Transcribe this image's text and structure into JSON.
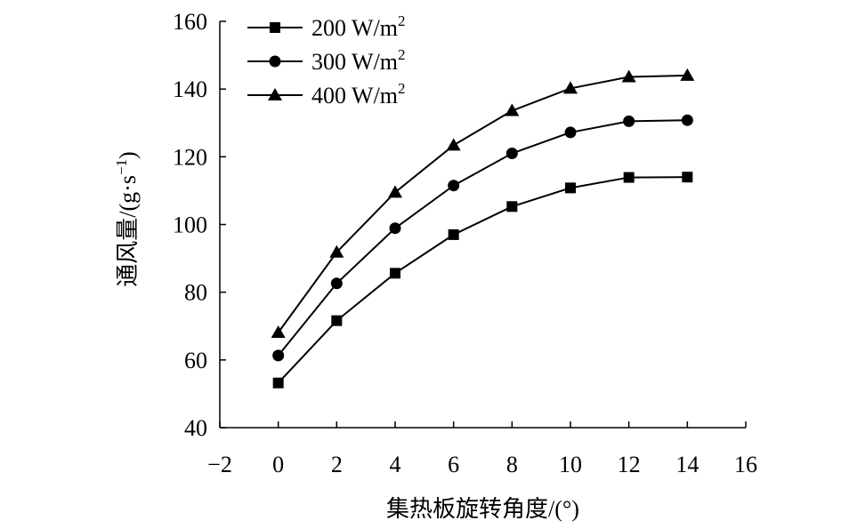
{
  "chart_data": {
    "type": "line",
    "title": "",
    "xlabel": "集热板旋转角度/(°)",
    "ylabel_main": "通风量/(g·s",
    "ylabel_sup": "−1",
    "ylabel_close": ")",
    "xlim": [
      -2,
      16
    ],
    "ylim": [
      40,
      160
    ],
    "x_ticks": [
      -2,
      0,
      2,
      4,
      6,
      8,
      10,
      12,
      14,
      16
    ],
    "x_tick_labels": [
      "−2",
      "0",
      "2",
      "4",
      "6",
      "8",
      "10",
      "12",
      "14",
      "16"
    ],
    "y_ticks": [
      40,
      60,
      80,
      100,
      120,
      140,
      160
    ],
    "y_tick_labels": [
      "40",
      "60",
      "80",
      "100",
      "120",
      "140",
      "160"
    ],
    "grid": false,
    "legend_position": "top-left",
    "x": [
      0,
      2,
      4,
      6,
      8,
      10,
      12,
      14
    ],
    "series": [
      {
        "name": "200 W/m",
        "sup": "2",
        "marker": "square",
        "values": [
          53.2,
          71.6,
          85.6,
          97.0,
          105.3,
          110.8,
          113.9,
          114.0
        ]
      },
      {
        "name": "300 W/m",
        "sup": "2",
        "marker": "circle",
        "values": [
          61.3,
          82.6,
          98.9,
          111.5,
          121.0,
          127.2,
          130.5,
          130.8
        ]
      },
      {
        "name": "400 W/m",
        "sup": "2",
        "marker": "triangle",
        "values": [
          68.1,
          91.8,
          109.5,
          123.4,
          133.6,
          140.2,
          143.6,
          144.0
        ]
      }
    ]
  }
}
